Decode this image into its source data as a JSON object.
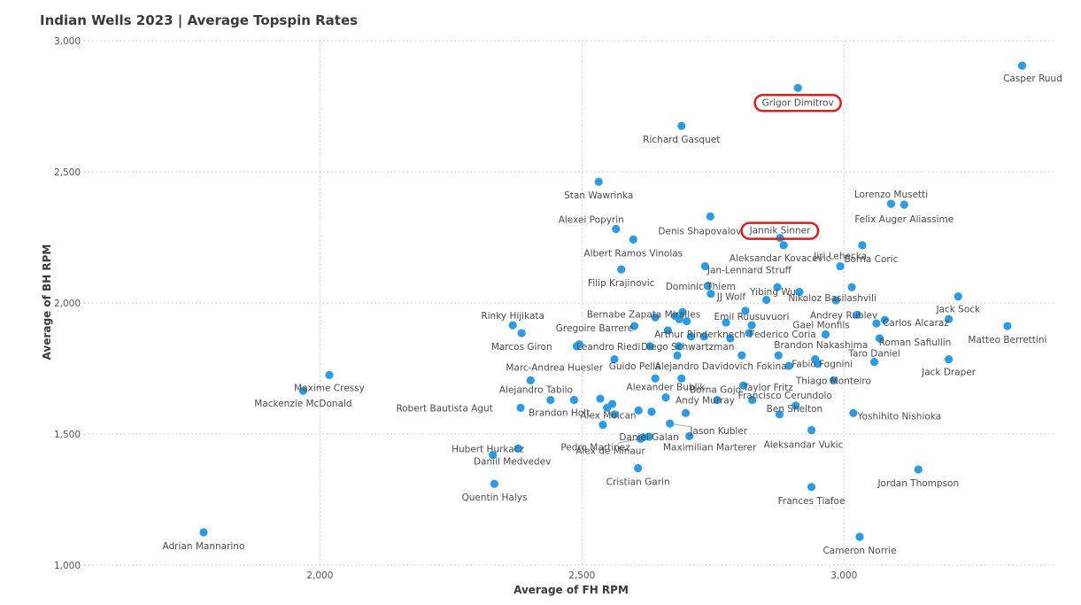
{
  "chart_data": {
    "type": "scatter",
    "title": "Indian Wells 2023 | Average Topspin Rates",
    "xlabel": "Average of FH RPM",
    "ylabel": "Average of BH RPM",
    "xlim": [
      1550,
      3400
    ],
    "ylim": [
      1000,
      3000
    ],
    "x_ticks": [
      {
        "value": 2000,
        "label": "2,000"
      },
      {
        "value": 2500,
        "label": "2,500"
      },
      {
        "value": 3000,
        "label": "3,000"
      }
    ],
    "y_ticks": [
      {
        "value": 1000,
        "label": "1,000"
      },
      {
        "value": 1500,
        "label": "1,500"
      },
      {
        "value": 2000,
        "label": "2,000"
      },
      {
        "value": 2500,
        "label": "2,500"
      },
      {
        "value": 3000,
        "label": "3,000"
      }
    ],
    "grid": "dotted",
    "highlighted": [
      "Grigor Dimitrov",
      "Jannik Sinner"
    ],
    "points": [
      {
        "x": 3340,
        "y": 2905,
        "label": "Casper Ruud"
      },
      {
        "x": 2912,
        "y": 2820,
        "label": "Grigor Dimitrov"
      },
      {
        "x": 2690,
        "y": 2675,
        "label": "Richard Gasquet"
      },
      {
        "x": 2532,
        "y": 2462,
        "label": "Stan Wawrinka"
      },
      {
        "x": 3090,
        "y": 2378,
        "label": "Lorenzo Musetti"
      },
      {
        "x": 3115,
        "y": 2375,
        "label": "Felix Auger Aliassime"
      },
      {
        "x": 2745,
        "y": 2330,
        "label": "Denis Shapovalov"
      },
      {
        "x": 2565,
        "y": 2282,
        "label": "Alexei Popyrin"
      },
      {
        "x": 2878,
        "y": 2248,
        "label": "Jannik Sinner"
      },
      {
        "x": 2598,
        "y": 2242,
        "label": "Albert Ramos Vinolas"
      },
      {
        "x": 2885,
        "y": 2220,
        "label": "Aleksandar Kovacevic"
      },
      {
        "x": 3035,
        "y": 2220,
        "label": "Borna Coric"
      },
      {
        "x": 2735,
        "y": 2140,
        "label": "Jan-Lennard Struff"
      },
      {
        "x": 2993,
        "y": 2140,
        "label": "Jiri Lehecka"
      },
      {
        "x": 2575,
        "y": 2128,
        "label": "Filip Krajinovic"
      },
      {
        "x": 2740,
        "y": 2065,
        "label": "Dominic Thiem"
      },
      {
        "x": 2873,
        "y": 2060,
        "label": "Yibing Wu"
      },
      {
        "x": 3015,
        "y": 2060,
        "label": "Nikoloz Basilashvili"
      },
      {
        "x": 2915,
        "y": 2042,
        "label": ""
      },
      {
        "x": 2746,
        "y": 2035,
        "label": "JJ Wolf"
      },
      {
        "x": 3218,
        "y": 2025,
        "label": "Jack Sock"
      },
      {
        "x": 2852,
        "y": 2012,
        "label": ""
      },
      {
        "x": 2985,
        "y": 2010,
        "label": ""
      },
      {
        "x": 2812,
        "y": 1970,
        "label": "Emil Ruusuvuori"
      },
      {
        "x": 2692,
        "y": 1965,
        "label": "Bernabe Zapata Miralles"
      },
      {
        "x": 3025,
        "y": 1955,
        "label": "Andrey Rublev"
      },
      {
        "x": 2678,
        "y": 1950,
        "label": ""
      },
      {
        "x": 2640,
        "y": 1945,
        "label": ""
      },
      {
        "x": 2686,
        "y": 1938,
        "label": ""
      },
      {
        "x": 3078,
        "y": 1935,
        "label": "Carlos Alcaraz"
      },
      {
        "x": 3200,
        "y": 1938,
        "label": ""
      },
      {
        "x": 2700,
        "y": 1930,
        "label": ""
      },
      {
        "x": 2775,
        "y": 1925,
        "label": ""
      },
      {
        "x": 3062,
        "y": 1922,
        "label": ""
      },
      {
        "x": 2368,
        "y": 1915,
        "label": "Rinky Hijikata"
      },
      {
        "x": 2600,
        "y": 1912,
        "label": "Gregoire Barrere"
      },
      {
        "x": 2824,
        "y": 1915,
        "label": ""
      },
      {
        "x": 3312,
        "y": 1912,
        "label": "Matteo Berrettini"
      },
      {
        "x": 2664,
        "y": 1895,
        "label": "Arthur Rinderknech"
      },
      {
        "x": 2819,
        "y": 1885,
        "label": "Federico Coria"
      },
      {
        "x": 2385,
        "y": 1885,
        "label": "Marcos Giron"
      },
      {
        "x": 2965,
        "y": 1880,
        "label": "Gael Monfils"
      },
      {
        "x": 2708,
        "y": 1872,
        "label": ""
      },
      {
        "x": 2733,
        "y": 1872,
        "label": ""
      },
      {
        "x": 3068,
        "y": 1865,
        "label": "Roman Safiullin"
      },
      {
        "x": 2783,
        "y": 1865,
        "label": ""
      },
      {
        "x": 2495,
        "y": 1842,
        "label": ""
      },
      {
        "x": 2490,
        "y": 1835,
        "label": ""
      },
      {
        "x": 2630,
        "y": 1835,
        "label": "Leandro Riedi"
      },
      {
        "x": 2685,
        "y": 1835,
        "label": "Diego Schwartzman"
      },
      {
        "x": 2875,
        "y": 1800,
        "label": "Brandon Nakashima"
      },
      {
        "x": 2682,
        "y": 1800,
        "label": ""
      },
      {
        "x": 2805,
        "y": 1800,
        "label": ""
      },
      {
        "x": 3200,
        "y": 1785,
        "label": "Jack Draper"
      },
      {
        "x": 2562,
        "y": 1785,
        "label": ""
      },
      {
        "x": 2945,
        "y": 1785,
        "label": ""
      },
      {
        "x": 3058,
        "y": 1775,
        "label": "Taro Daniel"
      },
      {
        "x": 2950,
        "y": 1768,
        "label": "Fabio Fognini"
      },
      {
        "x": 2895,
        "y": 1760,
        "label": "Alejandro Davidovich Fokina"
      },
      {
        "x": 2018,
        "y": 1725,
        "label": "Maxime Cressy"
      },
      {
        "x": 2640,
        "y": 1712,
        "label": "Guido Pella"
      },
      {
        "x": 2690,
        "y": 1712,
        "label": ""
      },
      {
        "x": 2980,
        "y": 1705,
        "label": "Thiago Monteiro"
      },
      {
        "x": 2402,
        "y": 1705,
        "label": "Marc-Andrea Huesler"
      },
      {
        "x": 2808,
        "y": 1685,
        "label": "Taylor Fritz"
      },
      {
        "x": 1968,
        "y": 1665,
        "label": "Mackenzie McDonald"
      },
      {
        "x": 2660,
        "y": 1640,
        "label": "Alexander Bublik"
      },
      {
        "x": 2535,
        "y": 1635,
        "label": ""
      },
      {
        "x": 2440,
        "y": 1630,
        "label": ""
      },
      {
        "x": 2485,
        "y": 1630,
        "label": "Alejandro Tabilo"
      },
      {
        "x": 2758,
        "y": 1630,
        "label": "Borna Gojo"
      },
      {
        "x": 2825,
        "y": 1630,
        "label": ""
      },
      {
        "x": 2558,
        "y": 1615,
        "label": ""
      },
      {
        "x": 2908,
        "y": 1608,
        "label": "Francisco Cerundolo"
      },
      {
        "x": 2383,
        "y": 1600,
        "label": "Robert Bautista Agut"
      },
      {
        "x": 2548,
        "y": 1600,
        "label": "Brandon Holt"
      },
      {
        "x": 2608,
        "y": 1590,
        "label": ""
      },
      {
        "x": 2633,
        "y": 1585,
        "label": ""
      },
      {
        "x": 2698,
        "y": 1580,
        "label": "Andy Murray"
      },
      {
        "x": 3018,
        "y": 1580,
        "label": "Yoshihito Nishioka"
      },
      {
        "x": 2562,
        "y": 1575,
        "label": ""
      },
      {
        "x": 2877,
        "y": 1575,
        "label": "Ben Shelton"
      },
      {
        "x": 2668,
        "y": 1540,
        "label": "Jason Kubler"
      },
      {
        "x": 2540,
        "y": 1535,
        "label": "Alex Molcan"
      },
      {
        "x": 2938,
        "y": 1515,
        "label": "Aleksandar Vukic"
      },
      {
        "x": 2705,
        "y": 1492,
        "label": "Maximilian Marterer"
      },
      {
        "x": 2617,
        "y": 1488,
        "label": "Alex de Minaur"
      },
      {
        "x": 2378,
        "y": 1445,
        "label": "Hubert Hurkacz"
      },
      {
        "x": 2628,
        "y": 1490,
        "label": "Daniel Galan"
      },
      {
        "x": 2612,
        "y": 1482,
        "label": "Pedro Martinez"
      },
      {
        "x": 2330,
        "y": 1420,
        "label": "Daniil Medvedev"
      },
      {
        "x": 2607,
        "y": 1370,
        "label": "Cristian Garin"
      },
      {
        "x": 3142,
        "y": 1365,
        "label": "Jordan Thompson"
      },
      {
        "x": 2333,
        "y": 1310,
        "label": "Quentin Halys"
      },
      {
        "x": 2938,
        "y": 1298,
        "label": "Frances Tiafoe"
      },
      {
        "x": 1778,
        "y": 1125,
        "label": "Adrian Mannarino"
      },
      {
        "x": 3030,
        "y": 1108,
        "label": "Cameron Norrie"
      }
    ]
  }
}
